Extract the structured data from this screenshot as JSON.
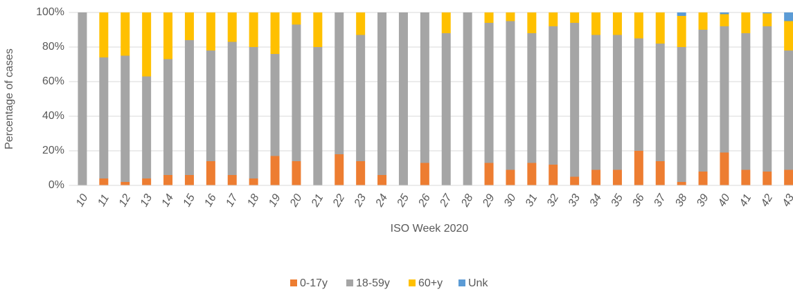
{
  "chart_data": {
    "type": "stacked_bar",
    "x_label": "ISO Week 2020",
    "y_label": "Percentage of cases",
    "categories": [
      "10",
      "11",
      "12",
      "13",
      "14",
      "15",
      "16",
      "17",
      "18",
      "19",
      "20",
      "21",
      "22",
      "23",
      "24",
      "25",
      "26",
      "27",
      "28",
      "29",
      "30",
      "31",
      "32",
      "33",
      "34",
      "35",
      "36",
      "37",
      "38",
      "39",
      "40",
      "41",
      "42",
      "43"
    ],
    "series": [
      {
        "name": "0-17y",
        "color": "#ed7d31",
        "values": [
          0,
          4,
          2,
          4,
          6,
          6,
          14,
          6,
          4,
          17,
          14,
          0,
          18,
          14,
          6,
          0,
          13,
          0,
          0,
          13,
          9,
          13,
          12,
          5,
          9,
          9,
          20,
          14,
          2,
          8,
          19,
          9,
          8,
          9
        ]
      },
      {
        "name": "18-59y",
        "color": "#a5a5a5",
        "values": [
          100,
          70,
          73,
          59,
          67,
          78,
          64,
          77,
          76,
          59,
          79,
          80,
          82,
          73,
          94,
          100,
          87,
          88,
          100,
          81,
          86,
          75,
          80,
          89,
          78,
          78,
          65,
          68,
          78,
          82,
          73,
          79,
          84,
          69
        ]
      },
      {
        "name": "60+y",
        "color": "#ffc000",
        "values": [
          0,
          26,
          25,
          37,
          27,
          16,
          22,
          17,
          20,
          24,
          7,
          20,
          0,
          13,
          0,
          0,
          0,
          12,
          0,
          6,
          5,
          12,
          8,
          6,
          13,
          13,
          15,
          18,
          18,
          10,
          7,
          12,
          7.5,
          17
        ]
      },
      {
        "name": "Unk",
        "color": "#5b9bd5",
        "values": [
          0,
          0,
          0,
          0,
          0,
          0,
          0,
          0,
          0,
          0,
          0,
          0,
          0,
          0,
          0,
          0,
          0,
          0,
          0,
          0,
          0,
          0,
          0,
          0,
          0,
          0,
          0,
          0,
          2,
          0,
          1,
          0,
          0.5,
          5
        ]
      }
    ],
    "ylim": [
      0,
      100
    ],
    "yticks": [
      {
        "value": 0,
        "label": "0%"
      },
      {
        "value": 20,
        "label": "20%"
      },
      {
        "value": 40,
        "label": "40%"
      },
      {
        "value": 60,
        "label": "60%"
      },
      {
        "value": 80,
        "label": "80%"
      },
      {
        "value": 100,
        "label": "100%"
      }
    ],
    "grid": true,
    "legend": "bottom"
  }
}
